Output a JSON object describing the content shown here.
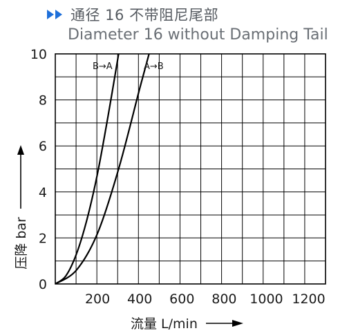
{
  "title": {
    "zh": "通径 16 不带阻尼尾部",
    "en": "Diameter 16 without Damping Tail"
  },
  "colors": {
    "accent": "#1e6fd9",
    "grid": "#000000",
    "curve": "#000000"
  },
  "chart_data": {
    "type": "line",
    "xlabel": "流量 L/min",
    "ylabel": "压降 bar",
    "xlim": [
      0,
      1280
    ],
    "ylim": [
      0,
      10
    ],
    "xticks": [
      200,
      400,
      600,
      800,
      1000,
      1200
    ],
    "yticks": [
      0,
      2,
      4,
      6,
      8,
      10
    ],
    "grid": true,
    "series": [
      {
        "name": "B→A",
        "x": [
          0,
          50,
          100,
          150,
          200,
          250,
          300
        ],
        "y": [
          0,
          0.35,
          1.3,
          2.8,
          4.8,
          7.3,
          10
        ]
      },
      {
        "name": "A→B",
        "x": [
          0,
          100,
          200,
          300,
          400,
          450
        ],
        "y": [
          0,
          0.6,
          2.2,
          5.0,
          8.5,
          10.2
        ]
      }
    ]
  }
}
